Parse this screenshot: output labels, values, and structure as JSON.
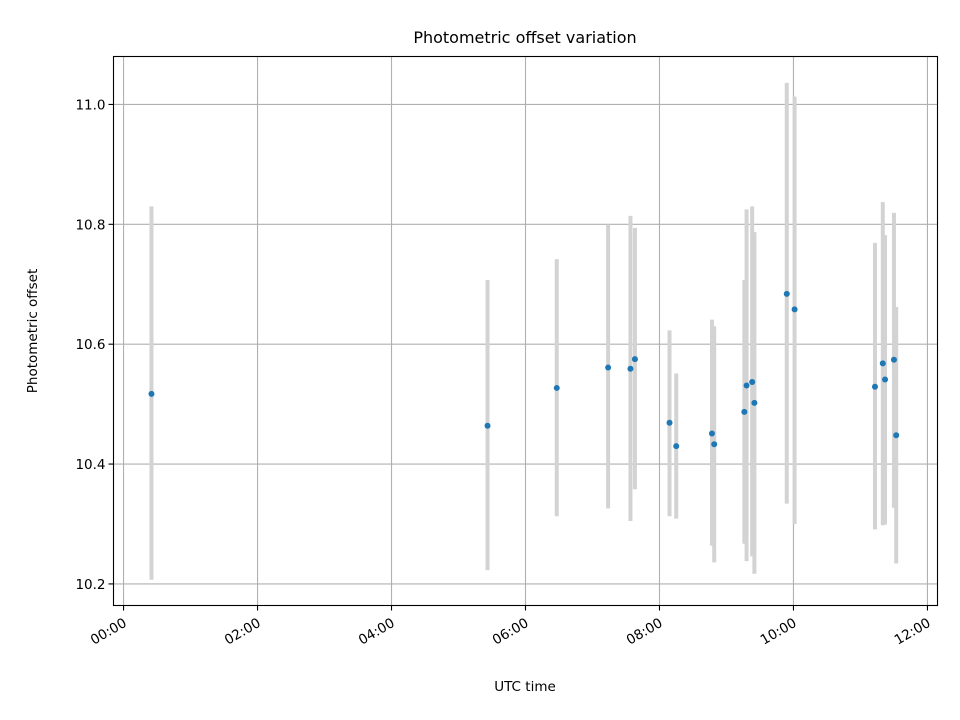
{
  "chart_data": {
    "type": "scatter",
    "title": "Photometric offset variation",
    "xlabel": "UTC time",
    "ylabel": "Photometric offset",
    "x_unit": "time of day (HH:MM)",
    "xlim": [
      "-00:09",
      "12:09"
    ],
    "ylim": [
      10.164,
      11.08
    ],
    "x_ticks": [
      "00:00",
      "02:00",
      "04:00",
      "06:00",
      "08:00",
      "10:00",
      "12:00"
    ],
    "y_ticks": [
      10.2,
      10.4,
      10.6,
      10.8,
      11.0
    ],
    "y_tick_labels": [
      "10.2",
      "10.4",
      "10.6",
      "10.8",
      "11.0"
    ],
    "grid": true,
    "point_color": "#1f77b4",
    "errorbar_color": "#d3d3d3",
    "series": [
      {
        "points": [
          {
            "x": "00:25",
            "y": 10.517,
            "low": 10.207,
            "high": 10.83
          },
          {
            "x": "05:26",
            "y": 10.464,
            "low": 10.223,
            "high": 10.707
          },
          {
            "x": "06:28",
            "y": 10.527,
            "low": 10.313,
            "high": 10.742
          },
          {
            "x": "07:14",
            "y": 10.561,
            "low": 10.326,
            "high": 10.8
          },
          {
            "x": "07:34",
            "y": 10.559,
            "low": 10.305,
            "high": 10.814
          },
          {
            "x": "07:38",
            "y": 10.575,
            "low": 10.358,
            "high": 10.794
          },
          {
            "x": "08:09",
            "y": 10.469,
            "low": 10.313,
            "high": 10.623
          },
          {
            "x": "08:15",
            "y": 10.43,
            "low": 10.309,
            "high": 10.551
          },
          {
            "x": "08:47",
            "y": 10.451,
            "low": 10.264,
            "high": 10.641
          },
          {
            "x": "08:49",
            "y": 10.433,
            "low": 10.236,
            "high": 10.63
          },
          {
            "x": "09:16",
            "y": 10.487,
            "low": 10.267,
            "high": 10.707
          },
          {
            "x": "09:18",
            "y": 10.531,
            "low": 10.238,
            "high": 10.825
          },
          {
            "x": "09:23",
            "y": 10.537,
            "low": 10.246,
            "high": 10.83
          },
          {
            "x": "09:25",
            "y": 10.502,
            "low": 10.217,
            "high": 10.787
          },
          {
            "x": "09:54",
            "y": 10.684,
            "low": 10.334,
            "high": 11.036
          },
          {
            "x": "10:01",
            "y": 10.658,
            "low": 10.3,
            "high": 11.013
          },
          {
            "x": "11:13",
            "y": 10.529,
            "low": 10.291,
            "high": 10.769
          },
          {
            "x": "11:20",
            "y": 10.568,
            "low": 10.298,
            "high": 10.837
          },
          {
            "x": "11:22",
            "y": 10.541,
            "low": 10.299,
            "high": 10.782
          },
          {
            "x": "11:30",
            "y": 10.574,
            "low": 10.327,
            "high": 10.819
          },
          {
            "x": "11:32",
            "y": 10.448,
            "low": 10.234,
            "high": 10.662
          }
        ]
      }
    ]
  }
}
